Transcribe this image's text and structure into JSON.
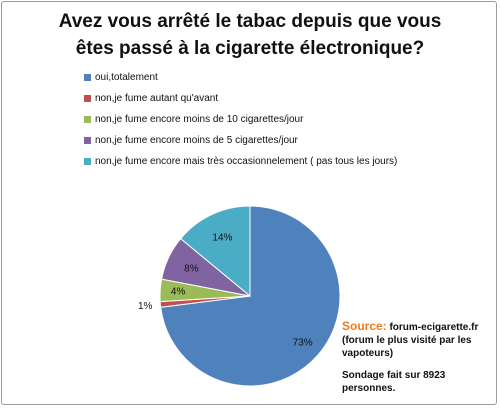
{
  "chart_data": {
    "type": "pie",
    "title": "Avez vous arrêté le tabac depuis que vous êtes passé à la cigarette électronique?",
    "title_lines": [
      "Avez vous arrêté le tabac depuis que vous",
      "êtes passé à la cigarette électronique?"
    ],
    "legend_position": "top",
    "slices": [
      {
        "label": "oui,totalement",
        "value": 73,
        "display": "73%",
        "color": "#4f81bd"
      },
      {
        "label": "non,je fume autant qu'avant",
        "value": 1,
        "display": "1%",
        "color": "#c0504d"
      },
      {
        "label": "non,je fume encore moins de 10 cigarettes/jour",
        "value": 4,
        "display": "4%",
        "color": "#9bbb59"
      },
      {
        "label": "non,je fume encore moins de 5 cigarettes/jour",
        "value": 8,
        "display": "8%",
        "color": "#8064a2"
      },
      {
        "label": "non,je fume encore mais très occasionnelement ( pas tous les jours)",
        "value": 14,
        "display": "14%",
        "color": "#4bacc6"
      }
    ]
  },
  "note": {
    "source_key": "Source:",
    "source_value": " forum-ecigarette.fr",
    "source_detail": "(forum le plus visité par les vapoteurs)",
    "survey": "Sondage fait sur 8923 personnes."
  }
}
